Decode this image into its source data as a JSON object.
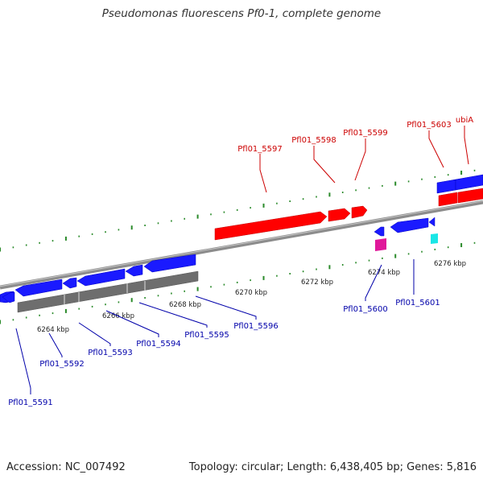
{
  "title": "Pseudomonas fluorescens Pf0-1, complete genome",
  "footer": {
    "accession": "Accession: NC_007492",
    "summary": "Topology: circular; Length: 6,438,405 bp; Genes: 5,816"
  },
  "colors": {
    "forward_strand": "#ff0000",
    "reverse_strand": "#1a1aff",
    "backbone": "#8c8c8c",
    "feature_track": "#6e6e6e",
    "magenta_feature": "#e0189a",
    "cyan_feature": "#19e6e6",
    "tick": "#2a8a2a",
    "label_forward": "#cc0000",
    "label_reverse": "#0000aa"
  },
  "kbp_labels": [
    "6264 kbp",
    "6266 kbp",
    "6268 kbp",
    "6270 kbp",
    "6272 kbp",
    "6274 kbp",
    "6276 kbp"
  ],
  "forward_labels": [
    "Pfl01_5597",
    "Pfl01_5598",
    "Pfl01_5599",
    "Pfl01_5603",
    "ubiA"
  ],
  "reverse_labels": [
    "Pfl01_5591",
    "Pfl01_5592",
    "Pfl01_5593",
    "Pfl01_5594",
    "Pfl01_5595",
    "Pfl01_5596",
    "Pfl01_5600",
    "Pfl01_5601"
  ]
}
